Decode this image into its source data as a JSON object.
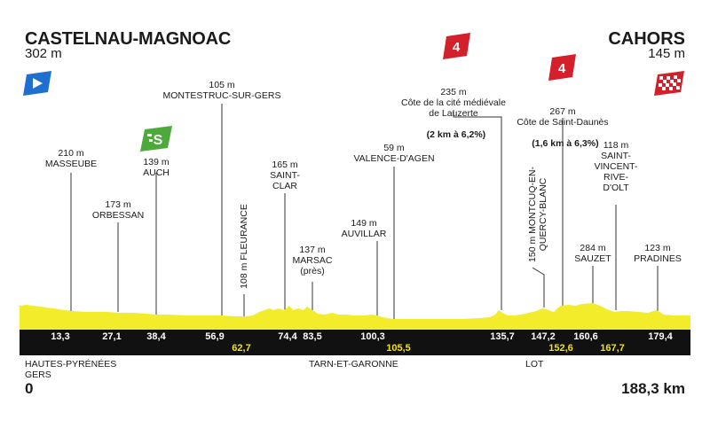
{
  "start": {
    "name": "CASTELNAU-MAGNOAC",
    "altitude": "302 m",
    "km": "0"
  },
  "finish": {
    "name": "CAHORS",
    "altitude": "145 m",
    "km": "188,3 km"
  },
  "regions": {
    "left": "HAUTES-PYRÉNÉES\nGERS",
    "middle": "TARN-ET-GARONNE",
    "right": "LOT"
  },
  "labels": {
    "masseube": "210 m\nMASSEUBE",
    "orbessan": "173 m\nORBESSAN",
    "auch": "139 m\nAUCH",
    "montestruc": "105 m\nMONTESTRUC-SUR-GERS",
    "fleurance": "108 m FLEURANCE",
    "saintclar": "165 m\nSAINT-\nCLAR",
    "marsac": "137 m\nMARSAC\n(près)",
    "auvillar": "149 m\nAUVILLAR",
    "valence": "59 m\nVALENCE-D'AGEN",
    "lauzerte": "235 m\nCôte de la cité médiévale\nde Lauzerte",
    "lauzerte_bold": "(2 km à 6,2%)",
    "montcuq": "150 m MONTCUQ-EN-\nQUERCY-BLANC",
    "saintdaunes": "267 m\nCôte de Saint-Daunès",
    "saintdaunes_bold": "(1,6 km à 6,3%)",
    "sauzet": "284 m\nSAUZET",
    "saintvincent": "118 m\nSAINT-\nVINCENT-\nRIVE-\nD'OLT",
    "pradines": "123 m\nPRADINES"
  },
  "icons": {
    "start": "start-flag-icon",
    "finish": "checkered-finish-flag-icon",
    "sprint": "green-sprint-icon",
    "climb": "red-category-climb-icon"
  },
  "sprint_label": "S",
  "climb_category": "4",
  "km_markers_top": [
    "13,3",
    "27,1",
    "38,4",
    "56,9",
    "74,4",
    "83,5",
    "100,3",
    "135,7",
    "147,2",
    "160,6",
    "179,4"
  ],
  "km_markers_bottom": [
    "62,7",
    "105,5",
    "152,6",
    "167,7"
  ],
  "colors": {
    "profile_fill": "#f2ec2b",
    "profile_dark": "#e4d814",
    "band": "#111111",
    "yellow_text": "#f5e400",
    "sprint_green": "#4caa3a",
    "climb_red": "#d4202a",
    "start_blue": "#1f6fd1"
  }
}
